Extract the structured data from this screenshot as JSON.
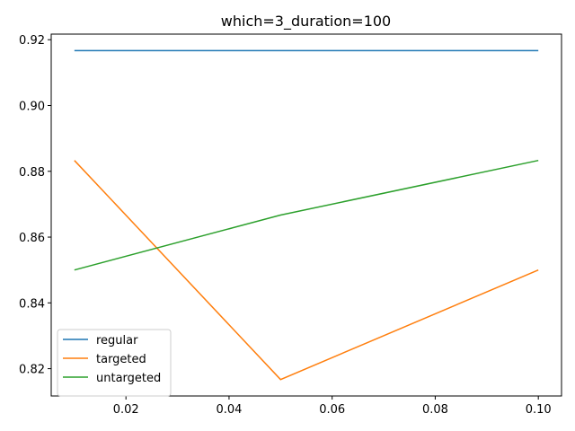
{
  "chart_data": {
    "type": "line",
    "title": "which=3_duration=100",
    "xlabel": "",
    "ylabel": "",
    "x": [
      0.01,
      0.05,
      0.1
    ],
    "xlim": [
      0.0055,
      0.1045
    ],
    "ylim": [
      0.8117,
      0.9217
    ],
    "xticks": [
      0.02,
      0.04,
      0.06,
      0.08,
      0.1
    ],
    "xtick_labels": [
      "0.02",
      "0.04",
      "0.06",
      "0.08",
      "0.10"
    ],
    "yticks": [
      0.82,
      0.84,
      0.86,
      0.88,
      0.9,
      0.92
    ],
    "ytick_labels": [
      "0.82",
      "0.84",
      "0.86",
      "0.88",
      "0.90",
      "0.92"
    ],
    "grid": false,
    "legend_position": "bottom-left",
    "series": [
      {
        "name": "regular",
        "color": "#1f77b4",
        "values": [
          0.9167,
          0.9167,
          0.9167
        ]
      },
      {
        "name": "targeted",
        "color": "#ff7f0e",
        "values": [
          0.8833,
          0.8167,
          0.85
        ]
      },
      {
        "name": "untargeted",
        "color": "#2ca02c",
        "values": [
          0.85,
          0.8667,
          0.8833
        ]
      }
    ]
  }
}
